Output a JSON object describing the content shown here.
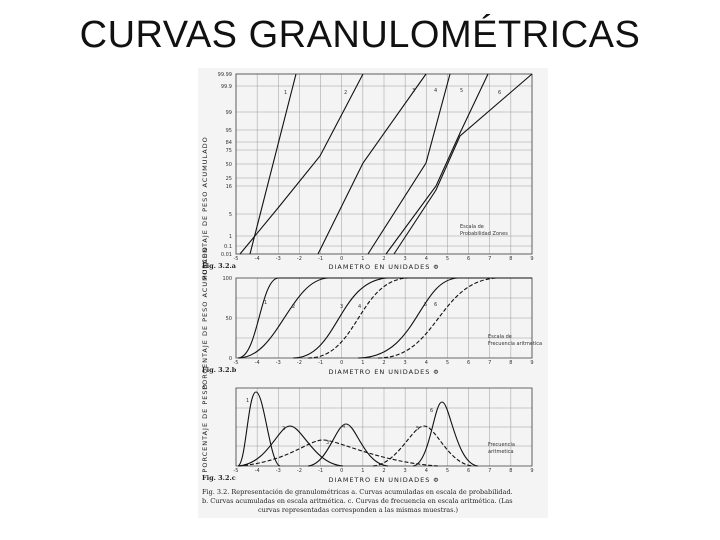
{
  "slide": {
    "title": "CURVAS GRANULOMÉTRICAS"
  },
  "figure": {
    "panel_a": {
      "fig_label": "Fig. 3.2.a",
      "y_axis_label": "PORCENTAJE DE PESO ACUMULADO",
      "y_ticks": [
        "99.99",
        "99.9",
        "99",
        "95",
        "84",
        "75",
        "50",
        "25",
        "16",
        "5",
        "1",
        "0.1",
        "0.01"
      ],
      "x_ticks": [
        "-5",
        "-4",
        "-3",
        "-2",
        "-1",
        "0",
        "1",
        "2",
        "3",
        "4",
        "5",
        "6",
        "7",
        "8",
        "9"
      ],
      "x_axis_label": "DIAMETRO EN UNIDADES Φ",
      "curve_numbers": [
        "1",
        "2",
        "3",
        "4",
        "5",
        "6"
      ],
      "scale_note": [
        "Escala de",
        "Probabilidad Zones"
      ]
    },
    "panel_b": {
      "fig_label": "Fig. 3.2.b",
      "y_axis_label": "PORCENTAJE DE PESO ACUMULADO",
      "y_ticks": [
        "100",
        "50",
        "0"
      ],
      "x_ticks": [
        "-5",
        "-4",
        "-3",
        "-2",
        "-1",
        "0",
        "1",
        "2",
        "3",
        "4",
        "5",
        "6",
        "7",
        "8",
        "9"
      ],
      "x_axis_label": "DIAMETRO EN UNIDADES Φ",
      "curve_numbers": [
        "1",
        "2",
        "3",
        "4",
        "5",
        "6"
      ],
      "scale_note": [
        "Escala de",
        "Frecuencia aritmetica"
      ]
    },
    "panel_c": {
      "fig_label": "Fig. 3.2.c",
      "y_axis_label": "PORCENTAJE DE PESO",
      "x_ticks": [
        "-5",
        "-4",
        "-3",
        "-2",
        "-1",
        "0",
        "1",
        "2",
        "3",
        "4",
        "5",
        "6",
        "7",
        "8",
        "9"
      ],
      "x_axis_label": "DIAMETRO EN UNIDADES Φ",
      "curve_numbers": [
        "1",
        "2",
        "3",
        "4",
        "5",
        "6"
      ],
      "scale_note": [
        "Frecuencia",
        "aritmetica"
      ]
    },
    "caption": [
      "Fig. 3.2. Representación de granulométricas a. Curvas acumuladas en escala de probabilidad.",
      "b. Curvas acumuladas en escala aritmética. c. Curvas de frecuencia en escala aritmética. (Las",
      "curvas representadas corresponden a las mismas muestras.)"
    ]
  }
}
